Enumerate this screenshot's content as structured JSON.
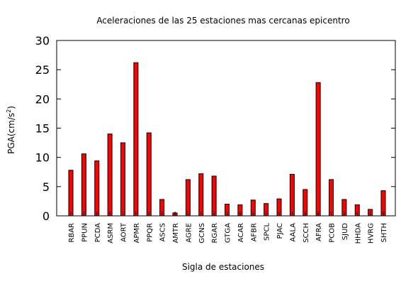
{
  "chart_data": {
    "type": "bar",
    "title": "Aceleraciones de las 25 estaciones mas cercanas epicentro",
    "xlabel": "Sigla de estaciones",
    "ylabel": "PGA(cm/s",
    "ylabel_sup": "2",
    "ylabel_end": ")",
    "categories": [
      "RBAR",
      "PPUN",
      "PCDA",
      "ASRM",
      "AORT",
      "APMR",
      "PPQR",
      "ASCS",
      "AMTR",
      "AGRE",
      "GCNS",
      "RGAR",
      "GTGA",
      "ACAR",
      "AFBR",
      "SPCL",
      "PJAC",
      "AALA",
      "SCCH",
      "AFRA",
      "PCOB",
      "SJUD",
      "HHDA",
      "HVRG",
      "SHTH"
    ],
    "values": [
      7.8,
      10.6,
      9.4,
      14.0,
      12.5,
      26.2,
      14.2,
      2.8,
      0.5,
      6.2,
      7.2,
      6.8,
      2.0,
      1.9,
      2.7,
      2.1,
      2.9,
      7.1,
      4.5,
      22.8,
      6.2,
      2.8,
      1.9,
      1.1,
      4.3
    ],
    "ylim": [
      0,
      30
    ],
    "yticks": [
      0,
      5,
      10,
      15,
      20,
      25,
      30
    ],
    "grid": false,
    "legend": "none",
    "colors": {
      "bar_fill": "#ff0000",
      "bar_stroke": "#000000"
    }
  }
}
